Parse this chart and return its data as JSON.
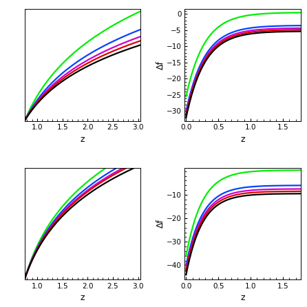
{
  "colors": [
    "#00ee00",
    "#0044ff",
    "#cc00cc",
    "#dd0000",
    "#000000"
  ],
  "linewidth": 1.6,
  "background": "#ffffff",
  "top_left": {
    "xlim": [
      0.75,
      3.05
    ],
    "ylim": [
      0.0,
      1.3
    ],
    "xticks": [
      1,
      1.5,
      2,
      2.5,
      3
    ],
    "xlabel": "z",
    "curves": [
      {
        "a": 0.78,
        "b": 1.8
      },
      {
        "a": 0.65,
        "b": 1.8
      },
      {
        "a": 0.6,
        "b": 1.8
      },
      {
        "a": 0.57,
        "b": 1.8
      },
      {
        "a": 0.54,
        "b": 1.8
      }
    ]
  },
  "top_right": {
    "xlim": [
      -0.02,
      1.78
    ],
    "ylim": [
      -33,
      1.5
    ],
    "xticks": [
      0,
      0.5,
      1,
      1.5
    ],
    "yticks": [
      0,
      -5,
      -10,
      -15,
      -20,
      -25,
      -30
    ],
    "xlabel": "z",
    "ylabel": "Δf",
    "curves": [
      {
        "y0": -25.5,
        "k": 3.5,
        "yend": 0.5
      },
      {
        "y0": -30.0,
        "k": 3.5,
        "yend": -3.5
      },
      {
        "y0": -30.8,
        "k": 3.5,
        "yend": -4.3
      },
      {
        "y0": -31.3,
        "k": 3.5,
        "yend": -4.8
      },
      {
        "y0": -32.0,
        "k": 3.5,
        "yend": -5.3
      }
    ]
  },
  "bottom_left": {
    "xlim": [
      0.75,
      3.05
    ],
    "ylim": [
      0.0,
      1.1
    ],
    "xticks": [
      1,
      1.5,
      2,
      2.5,
      3
    ],
    "xlabel": "z",
    "curves": [
      {
        "a": 0.68,
        "b": 2.5
      },
      {
        "a": 0.64,
        "b": 2.5
      },
      {
        "a": 0.62,
        "b": 2.5
      },
      {
        "a": 0.61,
        "b": 2.5
      },
      {
        "a": 0.59,
        "b": 2.5
      }
    ]
  },
  "bottom_right": {
    "xlim": [
      -0.02,
      1.78
    ],
    "ylim": [
      -46,
      1.5
    ],
    "xticks": [
      0,
      0.5,
      1,
      1.5
    ],
    "yticks": [
      -10,
      -20,
      -30,
      -40
    ],
    "xlabel": "z",
    "ylabel": "Δf",
    "curves": [
      {
        "y0": -36.0,
        "k": 4.0,
        "yend": 0.5
      },
      {
        "y0": -40.0,
        "k": 4.0,
        "yend": -6.0
      },
      {
        "y0": -41.5,
        "k": 4.0,
        "yend": -7.5
      },
      {
        "y0": -42.5,
        "k": 4.0,
        "yend": -8.5
      },
      {
        "y0": -44.0,
        "k": 4.0,
        "yend": -9.5
      }
    ]
  }
}
